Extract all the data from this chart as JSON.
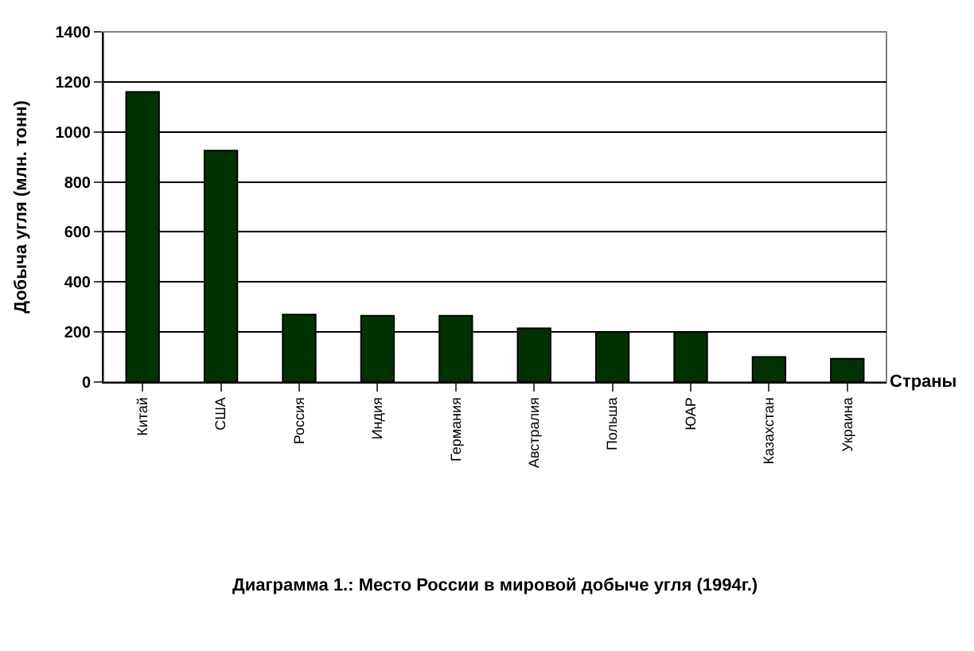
{
  "chart_data": {
    "type": "bar",
    "title": "Диаграмма 1.: Место России в мировой добыче угля (1994г.)",
    "xlabel": "Страны",
    "ylabel": "Добыча угля (млн. тонн)",
    "categories": [
      "Китай",
      "США",
      "Россия",
      "Индия",
      "Германия",
      "Австралия",
      "Польша",
      "ЮАР",
      "Казахстан",
      "Украина"
    ],
    "values": [
      1160,
      925,
      270,
      265,
      265,
      215,
      200,
      200,
      100,
      93
    ],
    "color": "#003300",
    "ylim": [
      0,
      1400
    ],
    "yticks": [
      0,
      200,
      400,
      600,
      800,
      1000,
      1200,
      1400
    ],
    "grid": "y"
  }
}
